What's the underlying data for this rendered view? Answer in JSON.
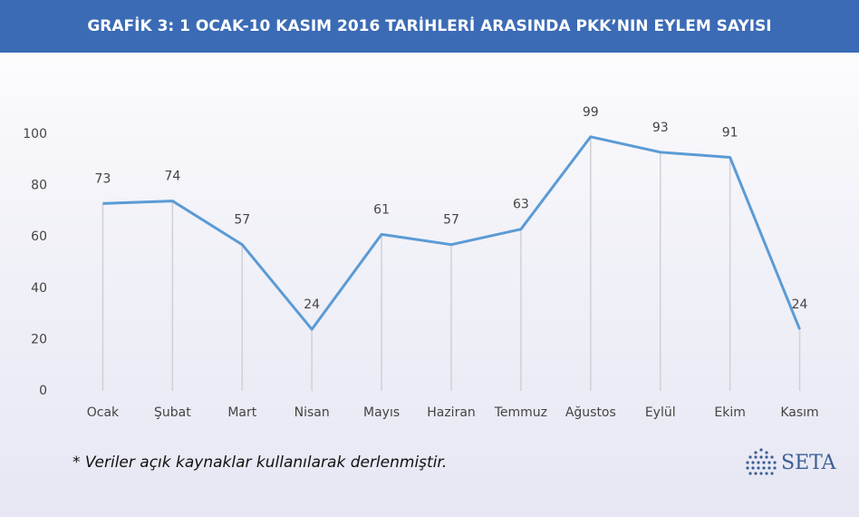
{
  "chart_data": {
    "type": "line",
    "title": "GRAFİK 3: 1 OCAK-10 KASIM 2016 TARİHLERİ ARASINDA PKK’NIN EYLEM SAYISI",
    "categories": [
      "Ocak",
      "Şubat",
      "Mart",
      "Nisan",
      "Mayıs",
      "Haziran",
      "Temmuz",
      "Ağustos",
      "Eylül",
      "Ekim",
      "Kasım"
    ],
    "values": [
      73,
      74,
      57,
      24,
      61,
      57,
      63,
      99,
      93,
      91,
      24
    ],
    "color": "#5b9bd5",
    "ylim": [
      0,
      100
    ],
    "yticks": [
      0,
      20,
      40,
      60,
      80,
      100
    ],
    "drop_lines": true,
    "footnote": "* Veriler açık kaynaklar kullanılarak derlenmiştir.",
    "logo_text": "SETA"
  }
}
